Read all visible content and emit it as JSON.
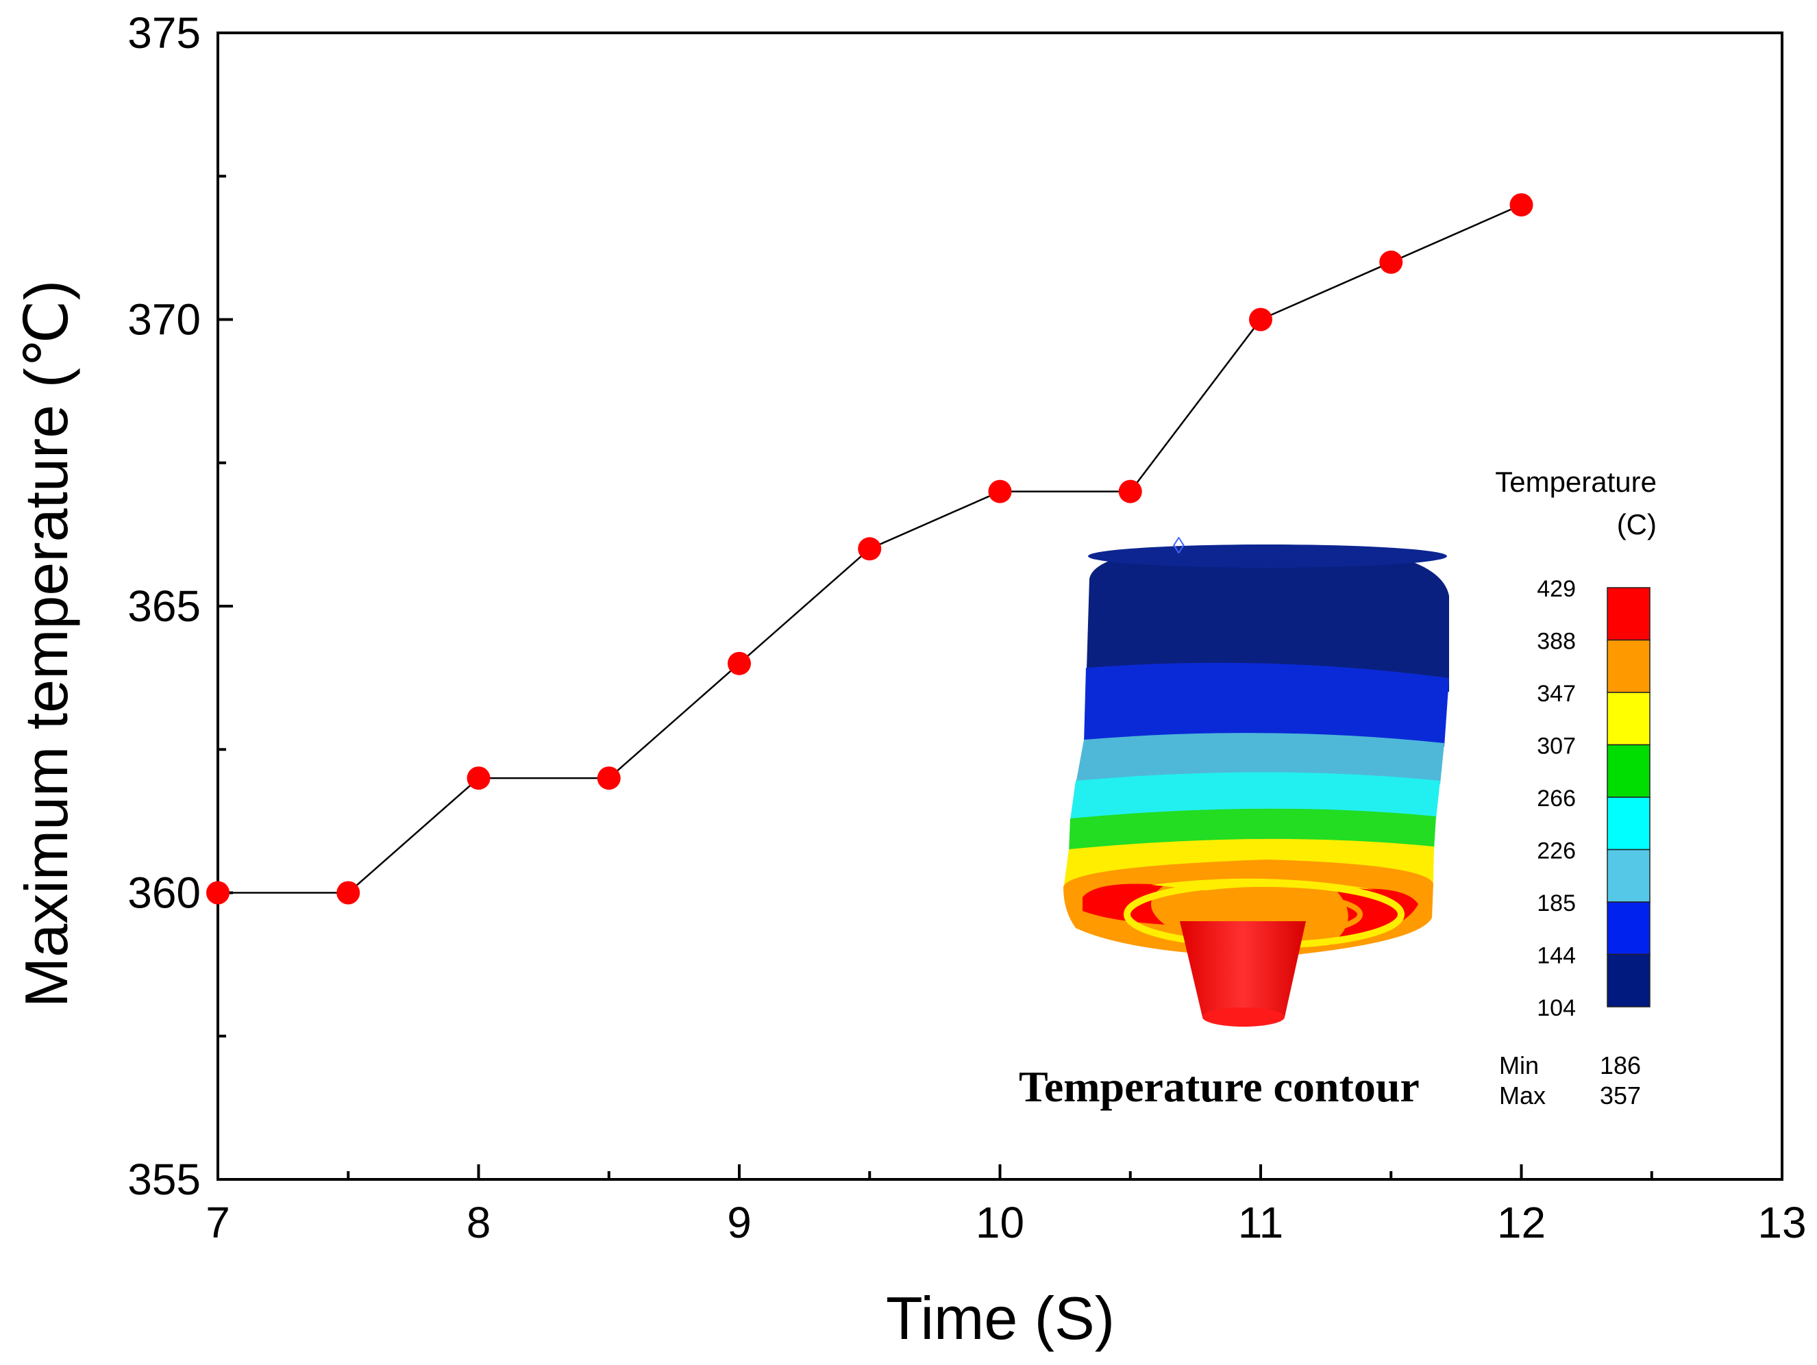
{
  "chart_data": {
    "type": "line",
    "title": "",
    "xlabel": "Time (S)",
    "ylabel": "Maximum temperature (℃)",
    "xlim": [
      7,
      13
    ],
    "ylim": [
      355,
      375
    ],
    "x_ticks": [
      7,
      8,
      9,
      10,
      11,
      12,
      13
    ],
    "y_ticks": [
      355,
      360,
      365,
      370,
      375
    ],
    "x_tick_labels": [
      "7",
      "8",
      "9",
      "10",
      "11",
      "12",
      "13"
    ],
    "y_tick_labels": [
      "355",
      "360",
      "365",
      "370",
      "375"
    ],
    "grid": false,
    "series": [
      {
        "name": "Maximum temperature",
        "x": [
          7,
          7.5,
          8,
          8.5,
          9,
          9.5,
          10,
          10.5,
          11,
          11.5,
          12
        ],
        "y": [
          360,
          360,
          362,
          362,
          364,
          366,
          367,
          367,
          370,
          371,
          372
        ],
        "marker_color": "#ff0000",
        "line_color": "#000000"
      }
    ]
  },
  "inset": {
    "caption": "Temperature contour",
    "legend_title_line1": "Temperature",
    "legend_title_line2": "(C)",
    "scale_labels": [
      "429",
      "388",
      "347",
      "307",
      "266",
      "226",
      "185",
      "144",
      "104"
    ],
    "scale_colors": [
      "#ff0000",
      "#ff9900",
      "#ffff00",
      "#00dd00",
      "#00ffff",
      "#55c8e8",
      "#0022ee",
      "#001a80"
    ],
    "min_label": "Min",
    "min_value": "186",
    "max_label": "Max",
    "max_value": "357",
    "model_band_colors": [
      "#0a2080",
      "#0a2ad8",
      "#4fb8d8",
      "#22f0f0",
      "#22dd22",
      "#ffee00",
      "#ff9a00",
      "#ff0000"
    ]
  }
}
